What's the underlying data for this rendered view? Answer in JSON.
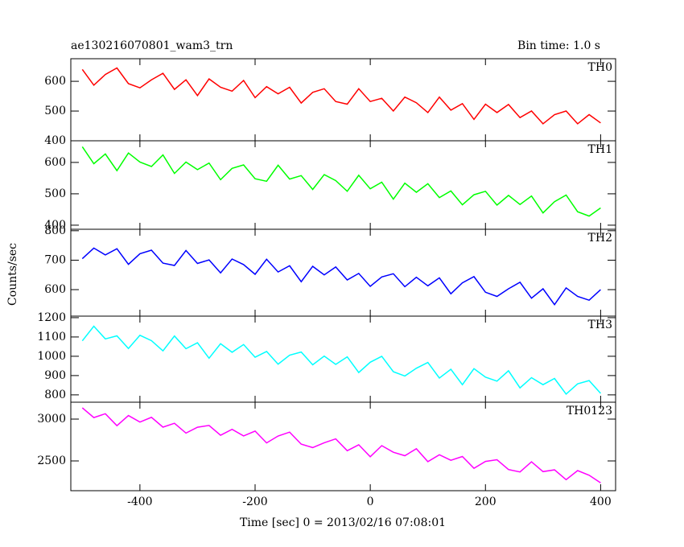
{
  "chart_data": [
    {
      "type": "line",
      "title": "ae130216070801_wam3_trn",
      "subtitle": "Bin time: 1.0 s",
      "x": [
        -500,
        -480,
        -460,
        -440,
        -420,
        -400,
        -380,
        -360,
        -340,
        -320,
        -300,
        -280,
        -260,
        -240,
        -220,
        -200,
        -180,
        -160,
        -140,
        -120,
        -100,
        -80,
        -60,
        -40,
        -20,
        0,
        20,
        40,
        60,
        80,
        100,
        120,
        140,
        160,
        180,
        200,
        220,
        240,
        260,
        280,
        300,
        320,
        340,
        360,
        380,
        400
      ],
      "series": [
        {
          "name": "TH0",
          "color": "#ff0000",
          "values": [
            640,
            587,
            623,
            645,
            592,
            578,
            605,
            627,
            573,
            605,
            552,
            608,
            580,
            567,
            603,
            545,
            582,
            558,
            580,
            527,
            563,
            575,
            532,
            523,
            575,
            532,
            543,
            500,
            547,
            528,
            495,
            547,
            503,
            525,
            472,
            523,
            495,
            522,
            478,
            500,
            457,
            488,
            500,
            457,
            488,
            460
          ]
        }
      ],
      "ylim": [
        400,
        676
      ],
      "yticks": [
        400,
        500,
        600
      ]
    },
    {
      "type": "line",
      "x": [
        -500,
        -480,
        -460,
        -440,
        -420,
        -400,
        -380,
        -360,
        -340,
        -320,
        -300,
        -280,
        -260,
        -240,
        -220,
        -200,
        -180,
        -160,
        -140,
        -120,
        -100,
        -80,
        -60,
        -40,
        -20,
        0,
        20,
        40,
        60,
        80,
        100,
        120,
        140,
        160,
        180,
        200,
        220,
        240,
        260,
        280,
        300,
        320,
        340,
        360,
        380,
        400
      ],
      "series": [
        {
          "name": "TH1",
          "color": "#00ff00",
          "values": [
            650,
            596,
            627,
            574,
            630,
            601,
            587,
            624,
            565,
            601,
            577,
            598,
            545,
            581,
            592,
            548,
            540,
            591,
            547,
            558,
            514,
            561,
            542,
            508,
            559,
            516,
            537,
            483,
            534,
            505,
            532,
            488,
            509,
            465,
            497,
            508,
            464,
            495,
            466,
            493,
            439,
            475,
            496,
            443,
            429,
            455
          ]
        }
      ],
      "ylim": [
        387,
        669
      ],
      "yticks": [
        400,
        500,
        600
      ]
    },
    {
      "type": "line",
      "ylabel": "Counts/sec",
      "x": [
        -500,
        -480,
        -460,
        -440,
        -420,
        -400,
        -380,
        -360,
        -340,
        -320,
        -300,
        -280,
        -260,
        -240,
        -220,
        -200,
        -180,
        -160,
        -140,
        -120,
        -100,
        -80,
        -60,
        -40,
        -20,
        0,
        20,
        40,
        60,
        80,
        100,
        120,
        140,
        160,
        180,
        200,
        220,
        240,
        260,
        280,
        300,
        320,
        340,
        360,
        380,
        400
      ],
      "series": [
        {
          "name": "TH2",
          "color": "#0000ff",
          "values": [
            705,
            741,
            718,
            739,
            686,
            722,
            734,
            690,
            682,
            733,
            689,
            701,
            657,
            704,
            685,
            652,
            703,
            660,
            681,
            627,
            679,
            650,
            677,
            633,
            655,
            611,
            643,
            654,
            610,
            642,
            613,
            640,
            586,
            623,
            644,
            591,
            577,
            603,
            625,
            571,
            603,
            549,
            606,
            577,
            564,
            600
          ]
        }
      ],
      "ylim": [
        510,
        805
      ],
      "yticks": [
        600,
        700,
        800
      ]
    },
    {
      "type": "line",
      "x": [
        -500,
        -480,
        -460,
        -440,
        -420,
        -400,
        -380,
        -360,
        -340,
        -320,
        -300,
        -280,
        -260,
        -240,
        -220,
        -200,
        -180,
        -160,
        -140,
        -120,
        -100,
        -80,
        -60,
        -40,
        -20,
        0,
        20,
        40,
        60,
        80,
        100,
        120,
        140,
        160,
        180,
        200,
        220,
        240,
        260,
        280,
        300,
        320,
        340,
        360,
        380,
        400
      ],
      "series": [
        {
          "name": "TH3",
          "color": "#00ffff",
          "values": [
            1080,
            1156,
            1090,
            1106,
            1040,
            1109,
            1081,
            1028,
            1105,
            1039,
            1070,
            990,
            1065,
            1021,
            1061,
            995,
            1025,
            959,
            1006,
            1022,
            956,
            1001,
            958,
            997,
            916,
            969,
            1000,
            920,
            898,
            938,
            968,
            887,
            933,
            853,
            936,
            892,
            871,
            925,
            836,
            889,
            853,
            885,
            804,
            857,
            874,
            808
          ]
        }
      ],
      "ylim": [
        762,
        1208
      ],
      "yticks": [
        800,
        900,
        1000,
        1100,
        1200
      ]
    },
    {
      "type": "line",
      "xlabel": "Time [sec] 0 = 2013/02/16 07:08:01",
      "x": [
        -500,
        -480,
        -460,
        -440,
        -420,
        -400,
        -380,
        -360,
        -340,
        -320,
        -300,
        -280,
        -260,
        -240,
        -220,
        -200,
        -180,
        -160,
        -140,
        -120,
        -100,
        -80,
        -60,
        -40,
        -20,
        0,
        20,
        40,
        60,
        80,
        100,
        120,
        140,
        160,
        180,
        200,
        220,
        240,
        260,
        280,
        300,
        320,
        340,
        360,
        380,
        400
      ],
      "series": [
        {
          "name": "TH0123",
          "color": "#ff00ff",
          "values": [
            3135,
            3018,
            3064,
            2921,
            3042,
            2964,
            3021,
            2904,
            2950,
            2833,
            2903,
            2924,
            2807,
            2878,
            2799,
            2857,
            2715,
            2798,
            2844,
            2701,
            2660,
            2717,
            2763,
            2622,
            2693,
            2550,
            2683,
            2604,
            2562,
            2645,
            2491,
            2574,
            2508,
            2553,
            2411,
            2494,
            2514,
            2397,
            2368,
            2489,
            2372,
            2393,
            2276,
            2384,
            2329,
            2238
          ]
        }
      ],
      "ylim": [
        2144,
        3202
      ],
      "yticks": [
        2500,
        3000
      ],
      "xlim": [
        -520,
        426
      ],
      "xticks": [
        -400,
        -200,
        0,
        200,
        400
      ]
    }
  ]
}
